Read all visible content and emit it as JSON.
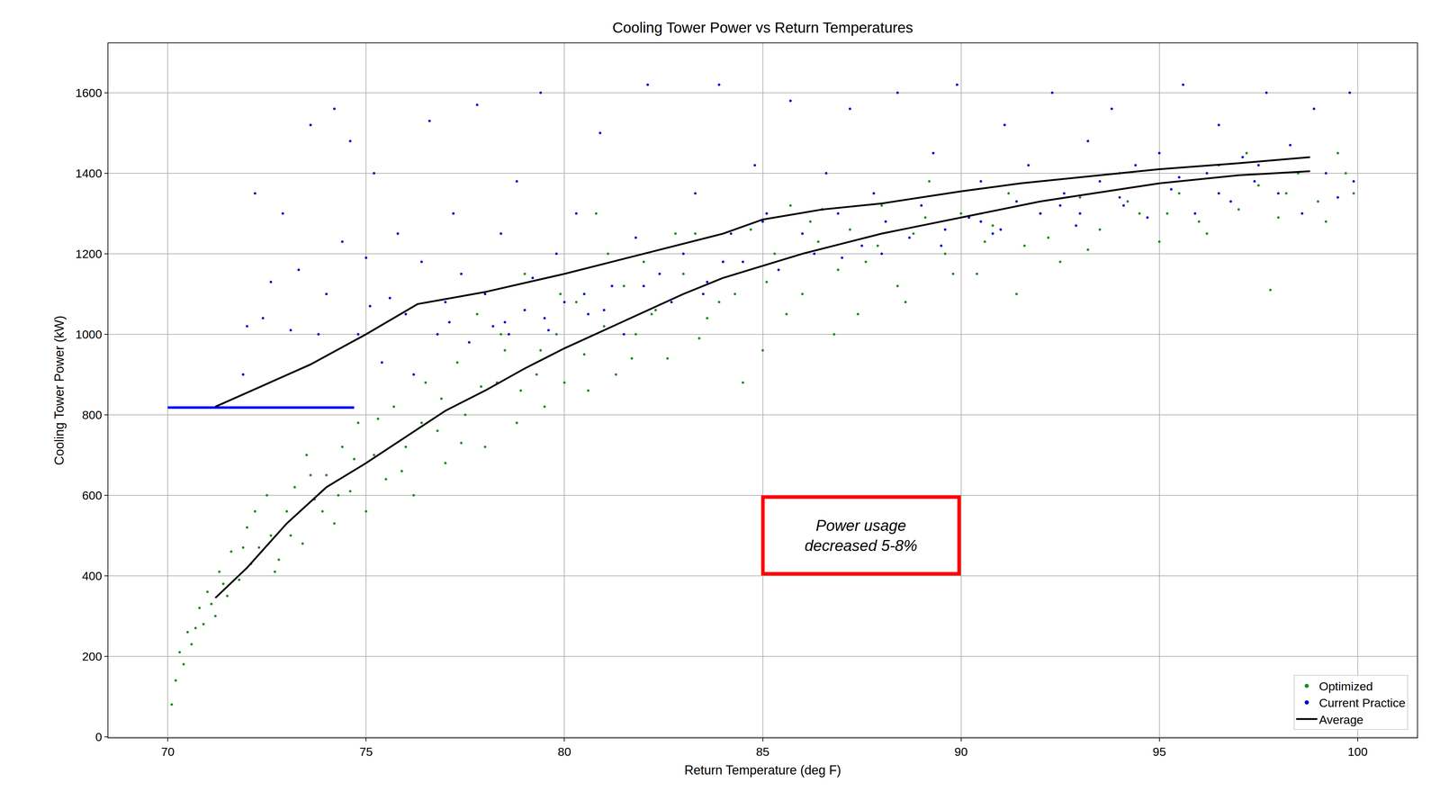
{
  "chart_data": {
    "type": "scatter",
    "title": "Cooling Tower Power vs Return Temperatures",
    "x_label": "Return Temperature (deg F)",
    "y_label": "Cooling Tower Power (kW)",
    "xlim": [
      68.5,
      101.5
    ],
    "xticks": [
      70,
      75,
      80,
      85,
      90,
      95,
      100
    ],
    "ylim": [
      -2,
      1723
    ],
    "yticks": [
      0,
      200,
      400,
      600,
      800,
      1000,
      1200,
      1400,
      1600
    ],
    "grid": true,
    "legend": "lower right",
    "annotations": [
      {
        "lines": [
          "Power usage",
          "decreased 5-8%"
        ],
        "color": "#ff0000"
      }
    ],
    "series": [
      {
        "name": "Optimized",
        "type": "scatter",
        "marker": "circle",
        "color": "#228b22",
        "x": [
          70.1,
          70.2,
          70.3,
          70.4,
          70.5,
          70.6,
          70.8,
          70.9,
          71.0,
          71.2,
          71.3,
          71.5,
          71.6,
          71.8,
          72.0,
          72.1,
          72.3,
          72.5,
          72.6,
          72.8,
          73.0,
          73.2,
          73.4,
          73.5,
          73.7,
          74.0,
          74.2,
          74.4,
          74.6,
          74.8,
          75.0,
          75.2,
          75.5,
          75.7,
          76.0,
          76.2,
          76.5,
          76.8,
          77.0,
          77.3,
          77.5,
          77.8,
          78.0,
          78.3,
          78.5,
          78.8,
          79.0,
          79.3,
          79.5,
          79.8,
          80.0,
          80.3,
          80.5,
          80.8,
          81.0,
          81.3,
          81.5,
          81.8,
          82.0,
          82.3,
          82.6,
          83.0,
          83.3,
          83.6,
          84.0,
          84.3,
          84.7,
          85.0,
          85.3,
          85.7,
          86.0,
          86.4,
          86.8,
          87.2,
          87.6,
          88.0,
          88.4,
          88.8,
          89.2,
          89.6,
          90.0,
          90.4,
          90.8,
          91.2,
          91.6,
          92.0,
          92.5,
          93.0,
          93.5,
          94.0,
          94.5,
          95.0,
          95.5,
          96.0,
          96.5,
          97.0,
          97.5,
          98.0,
          98.5,
          99.0,
          99.5,
          99.9,
          70.7,
          71.1,
          71.4,
          71.9,
          72.2,
          72.7,
          73.1,
          73.6,
          73.9,
          74.3,
          74.7,
          75.3,
          75.9,
          76.4,
          76.9,
          77.4,
          77.9,
          78.4,
          78.9,
          79.4,
          79.9,
          80.6,
          81.1,
          81.7,
          82.2,
          82.8,
          83.4,
          83.9,
          84.5,
          85.1,
          85.6,
          86.2,
          86.9,
          87.4,
          87.9,
          88.6,
          89.1,
          89.8,
          90.6,
          91.4,
          92.2,
          93.2,
          94.2,
          95.2,
          96.2,
          97.2,
          98.2,
          99.2,
          99.7,
          97.8
        ],
        "values": [
          80,
          140,
          210,
          180,
          260,
          230,
          320,
          280,
          360,
          300,
          410,
          350,
          460,
          390,
          520,
          430,
          470,
          600,
          500,
          440,
          560,
          620,
          480,
          700,
          590,
          650,
          530,
          720,
          610,
          780,
          560,
          700,
          640,
          820,
          720,
          600,
          880,
          760,
          680,
          930,
          800,
          1050,
          720,
          880,
          960,
          780,
          1150,
          900,
          820,
          1000,
          880,
          1080,
          950,
          1300,
          1020,
          900,
          1120,
          1000,
          1180,
          1060,
          940,
          1150,
          1250,
          1040,
          1180,
          1100,
          1260,
          960,
          1200,
          1320,
          1100,
          1230,
          1000,
          1260,
          1180,
          1320,
          1120,
          1250,
          1380,
          1200,
          1300,
          1150,
          1270,
          1350,
          1220,
          1300,
          1180,
          1340,
          1260,
          1400,
          1300,
          1230,
          1350,
          1280,
          1420,
          1310,
          1370,
          1290,
          1400,
          1330,
          1450,
          1350,
          270,
          330,
          380,
          470,
          560,
          410,
          500,
          650,
          560,
          600,
          690,
          790,
          660,
          780,
          840,
          730,
          870,
          1000,
          860,
          960,
          1100,
          860,
          1200,
          940,
          1050,
          1250,
          990,
          1080,
          880,
          1130,
          1050,
          1280,
          1160,
          1050,
          1220,
          1080,
          1290,
          1150,
          1230,
          1100,
          1240,
          1210,
          1330,
          1300,
          1250,
          1450,
          1350,
          1280,
          1400,
          1110
        ]
      },
      {
        "name": "Current Practice",
        "type": "scatter",
        "marker": "circle",
        "color": "#0000cc",
        "x": [
          71.9,
          72.0,
          72.2,
          72.4,
          72.6,
          72.9,
          73.1,
          73.3,
          73.6,
          73.8,
          74.0,
          74.2,
          74.4,
          74.6,
          74.8,
          75.0,
          75.2,
          75.4,
          75.6,
          75.8,
          76.0,
          76.2,
          76.4,
          76.6,
          76.8,
          77.0,
          77.2,
          77.4,
          77.6,
          77.8,
          78.0,
          78.2,
          78.4,
          78.6,
          78.8,
          79.0,
          79.2,
          79.4,
          79.6,
          79.8,
          80.0,
          80.3,
          80.6,
          80.9,
          81.2,
          81.5,
          81.8,
          82.1,
          82.4,
          82.7,
          83.0,
          83.3,
          83.6,
          83.9,
          84.2,
          84.5,
          84.8,
          85.1,
          85.4,
          85.7,
          86.0,
          86.3,
          86.6,
          86.9,
          87.2,
          87.5,
          87.8,
          88.1,
          88.4,
          88.7,
          89.0,
          89.3,
          89.6,
          89.9,
          90.2,
          90.5,
          90.8,
          91.1,
          91.4,
          91.7,
          92.0,
          92.3,
          92.6,
          92.9,
          93.2,
          93.5,
          93.8,
          94.1,
          94.4,
          94.7,
          95.0,
          95.3,
          95.6,
          95.9,
          96.2,
          96.5,
          96.8,
          97.1,
          97.4,
          97.7,
          98.0,
          98.3,
          98.6,
          98.9,
          99.2,
          99.5,
          99.8,
          99.9,
          75.1,
          77.1,
          78.5,
          79.5,
          80.5,
          81.0,
          82.0,
          83.5,
          84.0,
          85.0,
          86.5,
          87.0,
          88.0,
          89.5,
          90.5,
          91.0,
          92.5,
          93.0,
          94.0,
          95.5,
          96.5,
          97.5
        ],
        "values": [
          900,
          1020,
          1350,
          1040,
          1130,
          1300,
          1010,
          1160,
          1520,
          1000,
          1100,
          1560,
          1230,
          1480,
          1000,
          1190,
          1400,
          930,
          1090,
          1250,
          1050,
          900,
          1180,
          1530,
          1000,
          1080,
          1300,
          1150,
          980,
          1570,
          1100,
          1020,
          1250,
          1000,
          1380,
          1060,
          1140,
          1600,
          1010,
          1200,
          1080,
          1300,
          1050,
          1500,
          1120,
          1000,
          1240,
          1620,
          1150,
          1080,
          1200,
          1350,
          1130,
          1620,
          1250,
          1180,
          1420,
          1300,
          1160,
          1580,
          1250,
          1200,
          1400,
          1300,
          1560,
          1220,
          1350,
          1280,
          1600,
          1240,
          1320,
          1450,
          1260,
          1620,
          1290,
          1380,
          1250,
          1520,
          1330,
          1420,
          1300,
          1600,
          1350,
          1270,
          1480,
          1380,
          1560,
          1320,
          1420,
          1290,
          1450,
          1360,
          1620,
          1300,
          1400,
          1520,
          1330,
          1440,
          1380,
          1600,
          1350,
          1470,
          1300,
          1560,
          1400,
          1340,
          1600,
          1380,
          1070,
          1030,
          1030,
          1040,
          1100,
          1060,
          1120,
          1100,
          1180,
          1280,
          1310,
          1190,
          1200,
          1220,
          1280,
          1260,
          1320,
          1300,
          1340,
          1390,
          1350,
          1420
        ]
      },
      {
        "type": "line",
        "line_style": "solid",
        "color": "#0000ff",
        "x": [
          70,
          74.7
        ],
        "values": [
          818,
          818
        ]
      },
      {
        "name": "Average",
        "type": "line",
        "line_style": "solid",
        "color": "#000000",
        "x": [
          71.2,
          73.6,
          75.0,
          76.3,
          78.0,
          80.0,
          82.0,
          84.0,
          85.0,
          86.5,
          88.0,
          90.0,
          91.5,
          93.0,
          95.0,
          97.0,
          98.8,
          null,
          71.2,
          72.0,
          73.0,
          74.0,
          75.0,
          76.0,
          77.0,
          78.0,
          79.0,
          80.0,
          81.0,
          82.0,
          83.0,
          84.0,
          85.0,
          86.0,
          87.0,
          88.0,
          89.0,
          90.0,
          91.0,
          92.0,
          93.0,
          94.0,
          95.0,
          96.0,
          97.0,
          98.8
        ],
        "values": [
          820,
          925,
          1000,
          1075,
          1105,
          1150,
          1200,
          1250,
          1285,
          1310,
          1325,
          1355,
          1375,
          1390,
          1410,
          1425,
          1440,
          null,
          345,
          420,
          530,
          620,
          680,
          745,
          810,
          860,
          915,
          965,
          1010,
          1055,
          1100,
          1140,
          1170,
          1200,
          1225,
          1250,
          1270,
          1290,
          1310,
          1330,
          1345,
          1360,
          1375,
          1385,
          1395,
          1405
        ]
      }
    ]
  }
}
